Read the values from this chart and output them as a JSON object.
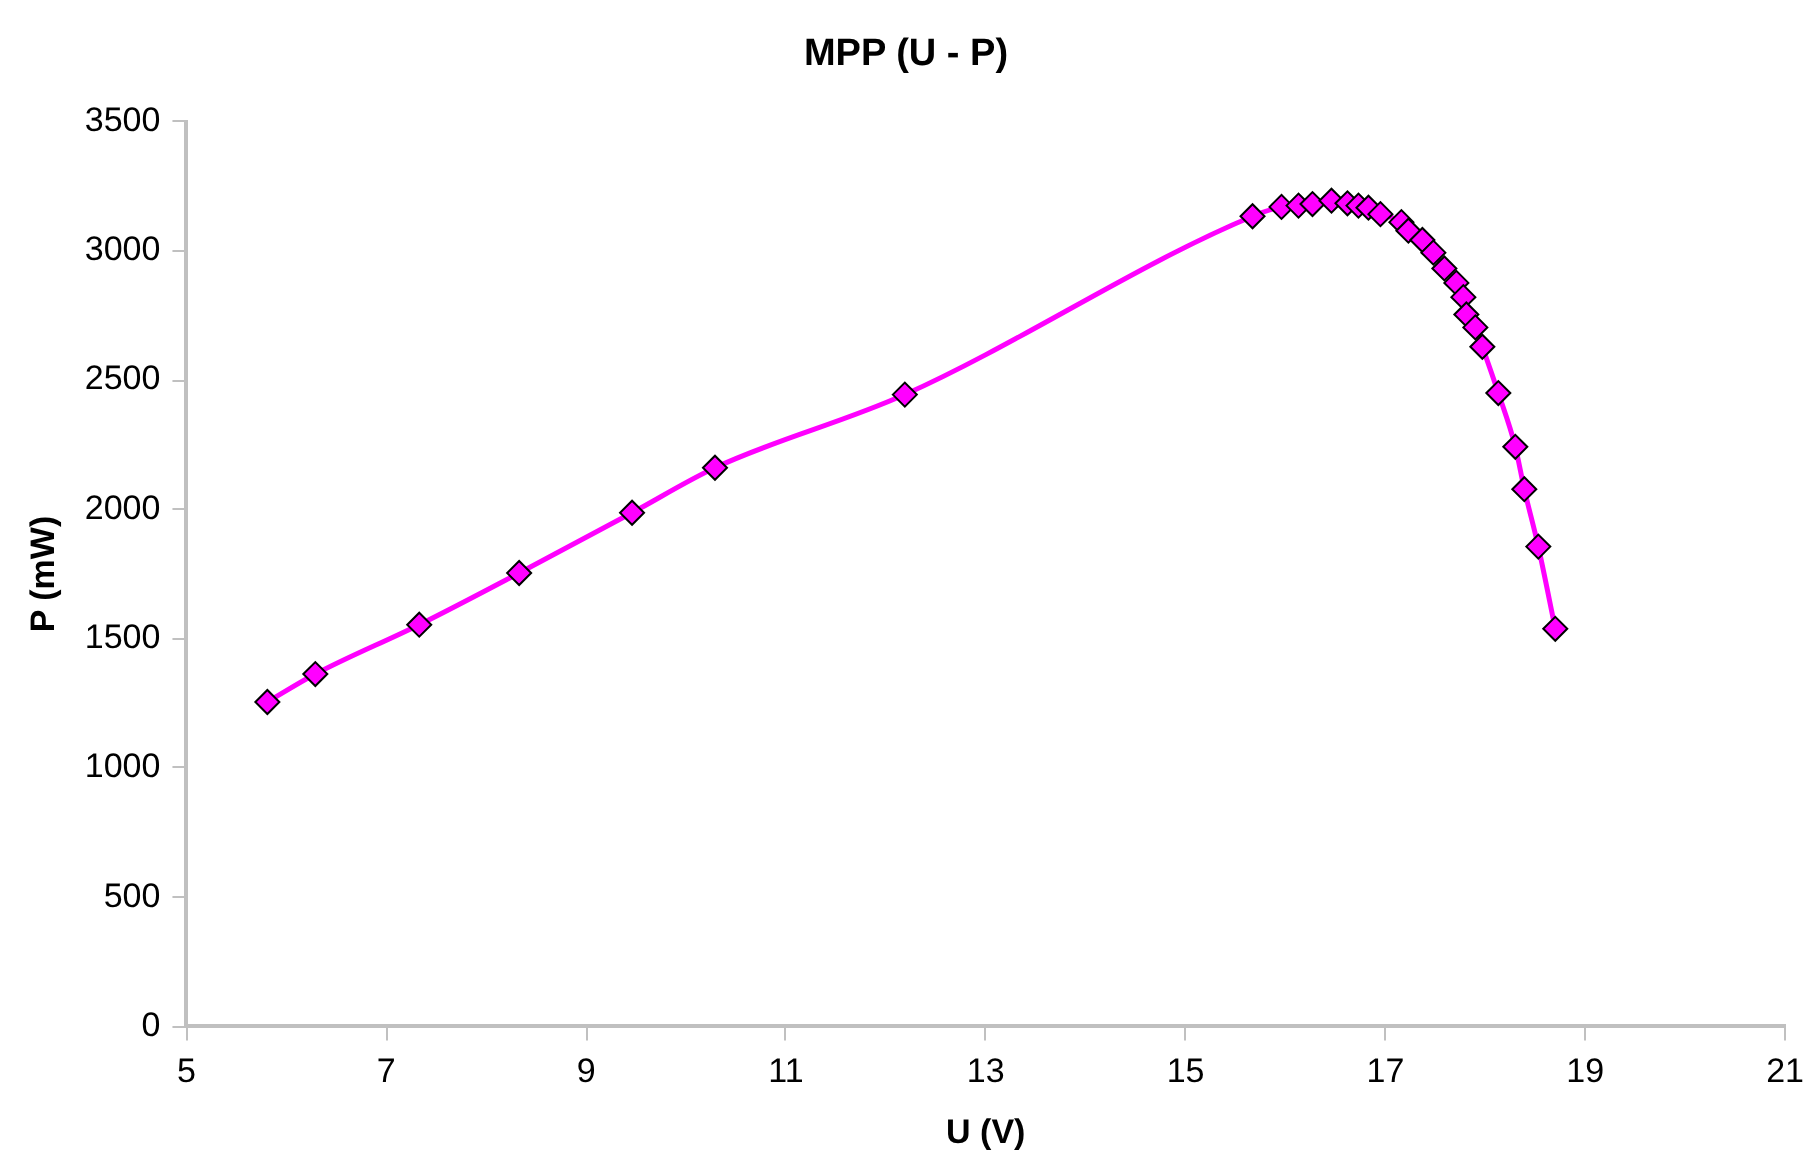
{
  "chart_data": {
    "type": "line",
    "title": "MPP (U - P)",
    "xlabel": "U (V)",
    "ylabel": "P (mW)",
    "xlim": [
      5,
      21
    ],
    "xticks": [
      5,
      7,
      9,
      11,
      13,
      15,
      17,
      19,
      21
    ],
    "ylim": [
      0,
      3500
    ],
    "yticks": [
      0,
      500,
      1000,
      1500,
      2000,
      2500,
      3000,
      3500
    ],
    "grid": false,
    "legend": false,
    "marker": "diamond",
    "line_style": "solid",
    "series": [
      {
        "color": "#ff00ff",
        "x": [
          5.81,
          6.29,
          7.33,
          8.33,
          9.46,
          10.29,
          12.19,
          15.67,
          15.96,
          16.13,
          16.27,
          16.46,
          16.62,
          16.73,
          16.83,
          16.95,
          17.16,
          17.23,
          17.37,
          17.48,
          17.59,
          17.71,
          17.78,
          17.81,
          17.9,
          17.97,
          18.13,
          18.3,
          18.39,
          18.53,
          18.7
        ],
        "values": [
          1255,
          1363,
          1554,
          1754,
          1987,
          2161,
          2444,
          3134,
          3170,
          3175,
          3181,
          3194,
          3184,
          3175,
          3167,
          3142,
          3111,
          3078,
          3042,
          2993,
          2932,
          2876,
          2821,
          2754,
          2704,
          2629,
          2450,
          2242,
          2078,
          1856,
          1538
        ]
      }
    ]
  }
}
